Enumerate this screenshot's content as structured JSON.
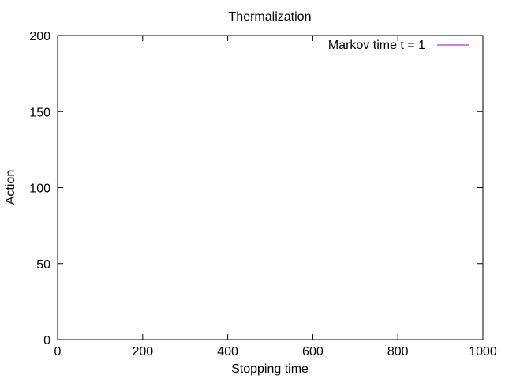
{
  "chart_data": {
    "type": "line",
    "title": "Thermalization",
    "xlabel": "Stopping time",
    "ylabel": "Action",
    "xlim": [
      0,
      1000
    ],
    "ylim": [
      0,
      200
    ],
    "x_ticks": [
      0,
      200,
      400,
      600,
      800,
      1000
    ],
    "y_ticks": [
      0,
      50,
      100,
      150,
      200
    ],
    "grid": false,
    "legend_position": "top-right",
    "series": [
      {
        "name": "Markov time  t = 1",
        "color": "#9400d3",
        "x": [],
        "y": []
      }
    ]
  }
}
